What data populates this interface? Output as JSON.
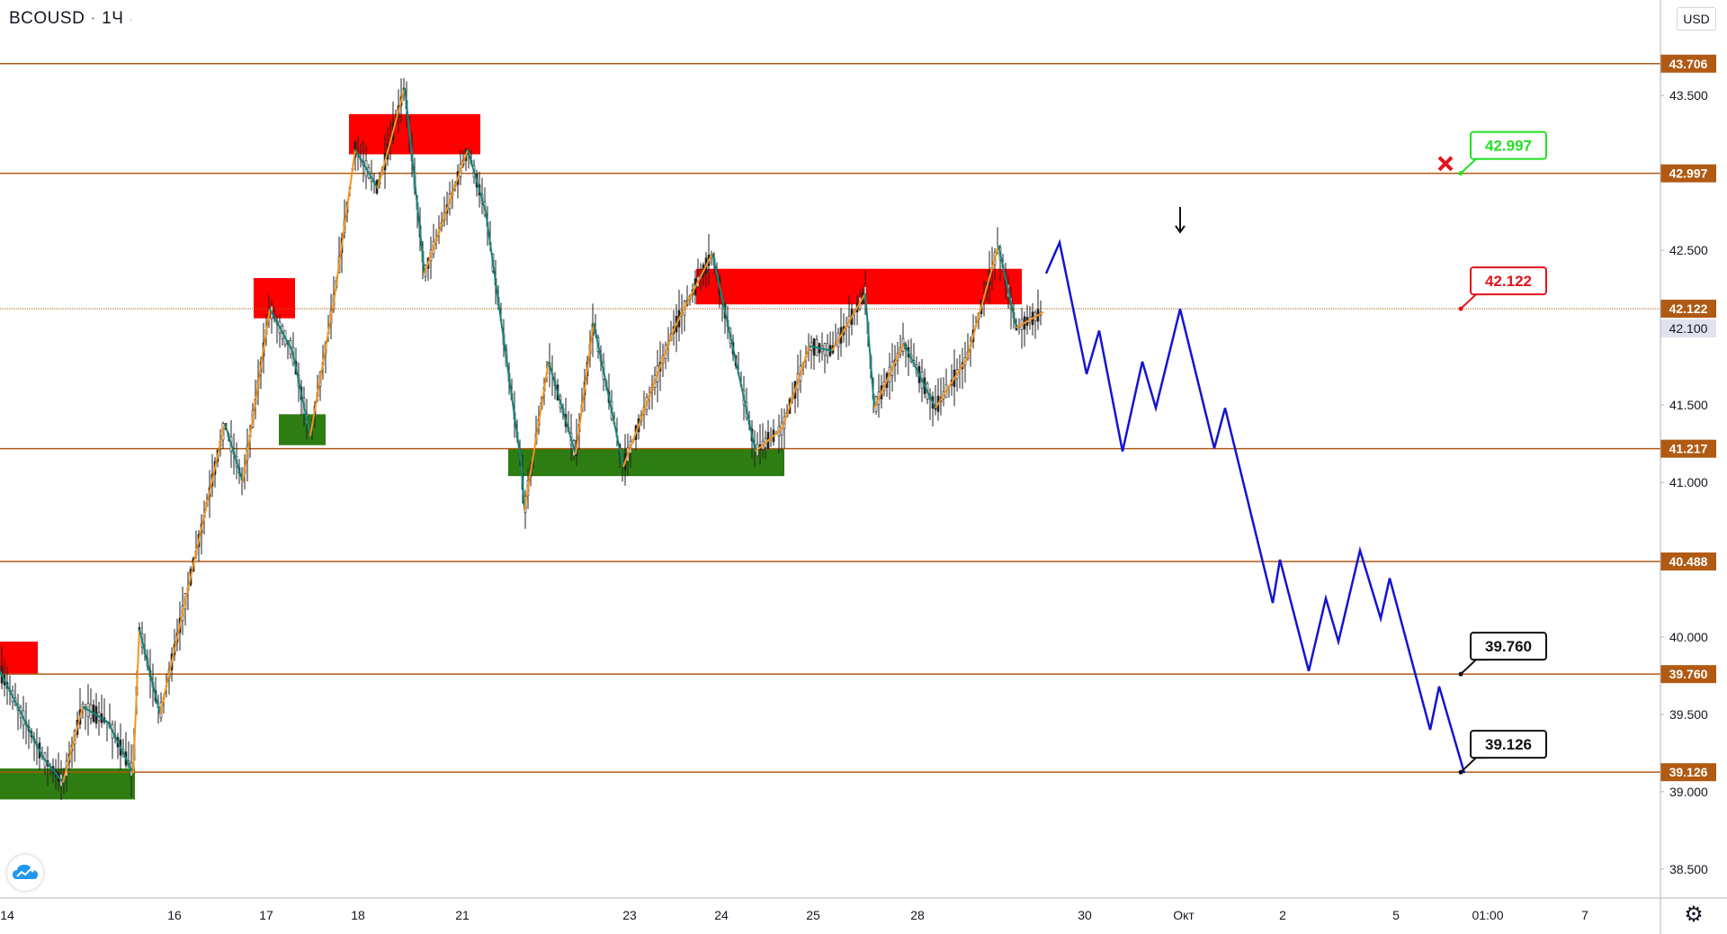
{
  "symbol": {
    "name": "BCOUSD",
    "interval": "1Ч"
  },
  "currency": "USD",
  "icons": {
    "logo": "tradingview-cloud-icon",
    "settings": "gear-icon",
    "invalidation": "red-x-icon",
    "arrow": "down-arrow-icon"
  },
  "colors": {
    "level": "#b05a14",
    "up": "#f7931a",
    "down": "#11877a",
    "forecast": "#1414d2",
    "supply": "#ff0000",
    "demand": "#2e7d12",
    "candle": "#222222"
  },
  "chart_data": {
    "type": "line",
    "ylim": [
      38.4,
      43.85
    ],
    "x_ticks": [
      "14",
      "16",
      "17",
      "18",
      "21",
      "23",
      "24",
      "25",
      "28",
      "30",
      "Окт",
      "2",
      "5",
      "01:00",
      "7"
    ],
    "y_ticks": [
      "43.500",
      "42.500",
      "41.500",
      "41.000",
      "40.000",
      "39.500",
      "39.000",
      "38.500"
    ],
    "levels": [
      {
        "value": 43.706,
        "label": "43.706"
      },
      {
        "value": 42.997,
        "label": "42.997"
      },
      {
        "value": 42.122,
        "label": "42.122"
      },
      {
        "value": 41.217,
        "label": "41.217"
      },
      {
        "value": 40.488,
        "label": "40.488"
      },
      {
        "value": 39.76,
        "label": "39.760"
      },
      {
        "value": 39.126,
        "label": "39.126"
      }
    ],
    "last_price": {
      "value": 42.1,
      "label": "42.100"
    },
    "callouts": [
      {
        "value": 42.997,
        "label": "42.997",
        "style": "green"
      },
      {
        "value": 42.122,
        "label": "42.122",
        "style": "red"
      },
      {
        "value": 39.76,
        "label": "39.760",
        "style": "black"
      },
      {
        "value": 39.126,
        "label": "39.126",
        "style": "black"
      }
    ],
    "supply_zones": [
      {
        "from": 0,
        "to": 42,
        "top": 39.97,
        "bottom": 39.76
      },
      {
        "from": 282,
        "to": 328,
        "top": 42.32,
        "bottom": 42.06
      },
      {
        "from": 388,
        "to": 534,
        "top": 43.38,
        "bottom": 43.12
      },
      {
        "from": 774,
        "to": 1136,
        "top": 42.38,
        "bottom": 42.15
      }
    ],
    "demand_zones": [
      {
        "from": 0,
        "to": 150,
        "top": 39.15,
        "bottom": 38.95
      },
      {
        "from": 310,
        "to": 362,
        "top": 41.44,
        "bottom": 41.24
      },
      {
        "from": 565,
        "to": 872,
        "top": 41.22,
        "bottom": 41.04
      }
    ],
    "price_path": [
      [
        0,
        39.78
      ],
      [
        48,
        39.22
      ],
      [
        70,
        39.06
      ],
      [
        92,
        39.55
      ],
      [
        120,
        39.45
      ],
      [
        148,
        39.12
      ],
      [
        155,
        40.05
      ],
      [
        178,
        39.5
      ],
      [
        250,
        41.38
      ],
      [
        270,
        41.0
      ],
      [
        300,
        42.12
      ],
      [
        325,
        41.85
      ],
      [
        345,
        41.3
      ],
      [
        372,
        42.2
      ],
      [
        395,
        43.15
      ],
      [
        420,
        42.9
      ],
      [
        450,
        43.55
      ],
      [
        472,
        42.35
      ],
      [
        520,
        43.15
      ],
      [
        540,
        42.75
      ],
      [
        580,
        41.1
      ],
      [
        583,
        40.82
      ],
      [
        610,
        41.78
      ],
      [
        640,
        41.18
      ],
      [
        660,
        42.03
      ],
      [
        693,
        41.1
      ],
      [
        750,
        42.0
      ],
      [
        792,
        42.48
      ],
      [
        840,
        41.2
      ],
      [
        870,
        41.35
      ],
      [
        900,
        41.88
      ],
      [
        925,
        41.85
      ],
      [
        962,
        42.22
      ],
      [
        972,
        41.48
      ],
      [
        1005,
        41.9
      ],
      [
        1040,
        41.48
      ],
      [
        1075,
        41.8
      ],
      [
        1110,
        42.53
      ],
      [
        1130,
        42.0
      ],
      [
        1160,
        42.1
      ]
    ],
    "forecast_path": [
      [
        1163,
        42.35
      ],
      [
        1178,
        42.55
      ],
      [
        1208,
        41.7
      ],
      [
        1222,
        41.98
      ],
      [
        1248,
        41.2
      ],
      [
        1270,
        41.78
      ],
      [
        1285,
        41.48
      ],
      [
        1312,
        42.12
      ],
      [
        1350,
        41.22
      ],
      [
        1362,
        41.48
      ],
      [
        1415,
        40.22
      ],
      [
        1423,
        40.5
      ],
      [
        1455,
        39.78
      ],
      [
        1474,
        40.25
      ],
      [
        1488,
        39.97
      ],
      [
        1512,
        40.56
      ],
      [
        1535,
        40.12
      ],
      [
        1545,
        40.38
      ],
      [
        1590,
        39.4
      ],
      [
        1600,
        39.68
      ],
      [
        1628,
        39.12
      ]
    ]
  }
}
